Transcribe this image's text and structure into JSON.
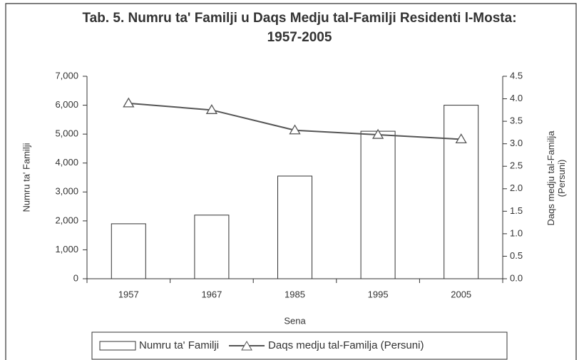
{
  "chart_data": {
    "type": "bar_line",
    "title": "Tab. 5. Numru ta' Familji u Daqs Medju tal-Familji Residenti l-Mosta: 1957-2005",
    "x_label": "Sena",
    "y_label": "Numru ta' Familji",
    "y2_label": "Daqs medju tal-Familja (Persuni)",
    "categories": [
      "1957",
      "1967",
      "1985",
      "1995",
      "2005"
    ],
    "series": [
      {
        "name": "Numru ta' Familji",
        "type": "bar",
        "color": "#ffffff",
        "values": [
          1900,
          2200,
          3550,
          5100,
          6000
        ]
      },
      {
        "name": "Daqs medju tal-Familja (Persuni)",
        "type": "line",
        "axis": "y2",
        "color": "#555555",
        "values": [
          3.9,
          3.75,
          3.3,
          3.2,
          3.1
        ]
      }
    ],
    "ylim": [
      0,
      7000
    ],
    "yticks": [
      0,
      {
        "value": 1000,
        "label": "1,000"
      },
      {
        "value": 2000,
        "label": "2,000"
      },
      {
        "value": 3000,
        "label": "3,000"
      },
      {
        "value": 4000,
        "label": "4,000"
      },
      {
        "value": 5000,
        "label": "5,000"
      },
      {
        "value": 6000,
        "label": "6,000"
      },
      {
        "value": 7000,
        "label": "7,000"
      }
    ],
    "y2lim": [
      0,
      4.5
    ],
    "y2ticks": [
      {
        "value": 0,
        "label": "0.0"
      },
      0.5,
      {
        "value": 1,
        "label": "1.0"
      },
      1.5,
      {
        "value": 2,
        "label": "2.0"
      },
      2.5,
      {
        "value": 3,
        "label": "3.0"
      },
      3.5,
      {
        "value": 4,
        "label": "4.0"
      },
      4.5
    ],
    "legend": "bottom"
  }
}
